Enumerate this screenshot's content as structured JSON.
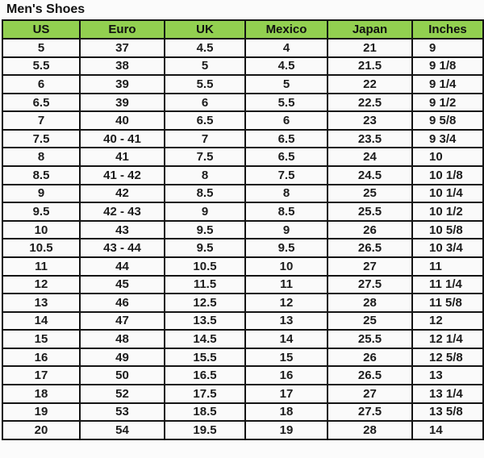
{
  "title": "Men's Shoes",
  "colors": {
    "header_bg": "#92D050",
    "border": "#141414",
    "cell_bg": "#fafafa",
    "page_bg": "#fbfbfb",
    "text": "#1a1a1a"
  },
  "chart_data": {
    "type": "table",
    "title": "Men's Shoes",
    "headers": [
      "US",
      "Euro",
      "UK",
      "Mexico",
      "Japan",
      "Inches"
    ],
    "rows": [
      [
        "5",
        "37",
        "4.5",
        "4",
        "21",
        "9"
      ],
      [
        "5.5",
        "38",
        "5",
        "4.5",
        "21.5",
        "9 1/8"
      ],
      [
        "6",
        "39",
        "5.5",
        "5",
        "22",
        "9 1/4"
      ],
      [
        "6.5",
        "39",
        "6",
        "5.5",
        "22.5",
        "9 1/2"
      ],
      [
        "7",
        "40",
        "6.5",
        "6",
        "23",
        "9 5/8"
      ],
      [
        "7.5",
        "40 - 41",
        "7",
        "6.5",
        "23.5",
        "9 3/4"
      ],
      [
        "8",
        "41",
        "7.5",
        "6.5",
        "24",
        "10"
      ],
      [
        "8.5",
        "41 - 42",
        "8",
        "7.5",
        "24.5",
        "10 1/8"
      ],
      [
        "9",
        "42",
        "8.5",
        "8",
        "25",
        "10 1/4"
      ],
      [
        "9.5",
        "42 - 43",
        "9",
        "8.5",
        "25.5",
        "10 1/2"
      ],
      [
        "10",
        "43",
        "9.5",
        "9",
        "26",
        "10 5/8"
      ],
      [
        "10.5",
        "43 - 44",
        "9.5",
        "9.5",
        "26.5",
        "10 3/4"
      ],
      [
        "11",
        "44",
        "10.5",
        "10",
        "27",
        "11"
      ],
      [
        "12",
        "45",
        "11.5",
        "11",
        "27.5",
        "11 1/4"
      ],
      [
        "13",
        "46",
        "12.5",
        "12",
        "28",
        "11 5/8"
      ],
      [
        "14",
        "47",
        "13.5",
        "13",
        "25",
        "12"
      ],
      [
        "15",
        "48",
        "14.5",
        "14",
        "25.5",
        "12 1/4"
      ],
      [
        "16",
        "49",
        "15.5",
        "15",
        "26",
        "12 5/8"
      ],
      [
        "17",
        "50",
        "16.5",
        "16",
        "26.5",
        "13"
      ],
      [
        "18",
        "52",
        "17.5",
        "17",
        "27",
        "13 1/4"
      ],
      [
        "19",
        "53",
        "18.5",
        "18",
        "27.5",
        "13 5/8"
      ],
      [
        "20",
        "54",
        "19.5",
        "19",
        "28",
        "14"
      ]
    ]
  }
}
